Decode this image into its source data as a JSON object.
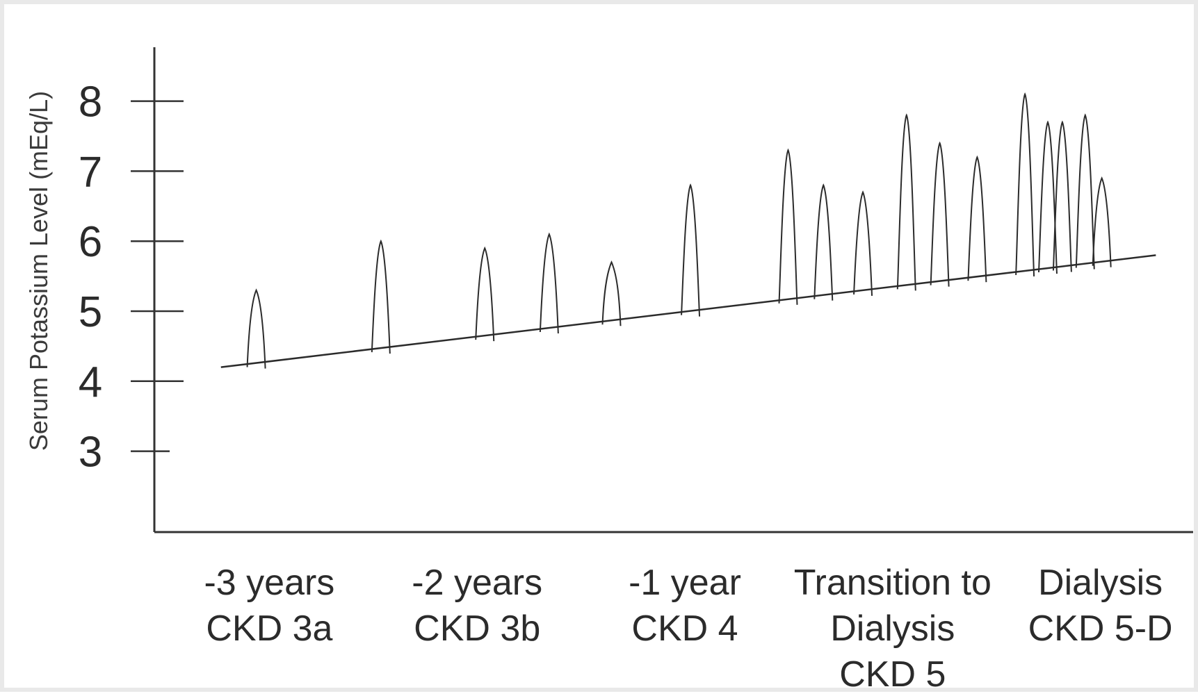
{
  "chart_data": {
    "type": "line",
    "title": "",
    "ylabel": "Serum Potassium Level (mEq/L)",
    "xlabel": "",
    "ylim": [
      2,
      9
    ],
    "y_ticks": [
      3,
      4,
      5,
      6,
      7,
      8
    ],
    "grid": false,
    "legend": "none",
    "categories": [
      {
        "x": 0.5,
        "lines": [
          "-3 years",
          "CKD 3a"
        ]
      },
      {
        "x": 1.5,
        "lines": [
          "-2 years",
          "CKD 3b"
        ]
      },
      {
        "x": 2.5,
        "lines": [
          "-1 year",
          "CKD 4"
        ]
      },
      {
        "x": 3.5,
        "lines": [
          "Transition to",
          "Dialysis",
          "CKD 5"
        ]
      },
      {
        "x": 4.5,
        "lines": [
          "Dialysis",
          "CKD 5-D"
        ]
      }
    ],
    "baseline": [
      {
        "x": 0.2,
        "y": 4.2
      },
      {
        "x": 4.7,
        "y": 5.8
      }
    ],
    "peaks": [
      {
        "x": 0.37,
        "y": 5.3
      },
      {
        "x": 0.97,
        "y": 6.0
      },
      {
        "x": 1.47,
        "y": 5.9
      },
      {
        "x": 1.78,
        "y": 6.1
      },
      {
        "x": 2.08,
        "y": 5.7
      },
      {
        "x": 2.46,
        "y": 6.8
      },
      {
        "x": 2.93,
        "y": 7.3
      },
      {
        "x": 3.1,
        "y": 6.8
      },
      {
        "x": 3.29,
        "y": 6.7
      },
      {
        "x": 3.5,
        "y": 7.8
      },
      {
        "x": 3.66,
        "y": 7.4
      },
      {
        "x": 3.84,
        "y": 7.2
      },
      {
        "x": 4.07,
        "y": 8.1
      },
      {
        "x": 4.18,
        "y": 7.7
      },
      {
        "x": 4.25,
        "y": 7.7
      },
      {
        "x": 4.36,
        "y": 7.8
      },
      {
        "x": 4.44,
        "y": 6.9
      }
    ]
  }
}
